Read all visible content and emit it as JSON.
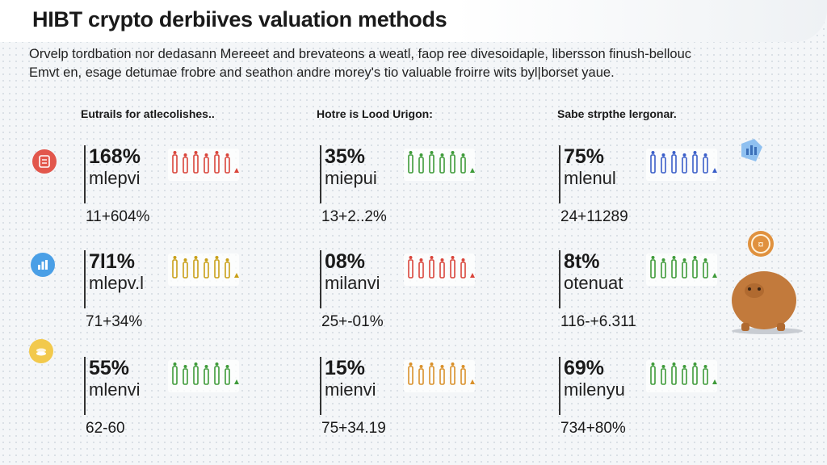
{
  "header": {
    "title": "HIBT crypto derbiives valuation methods",
    "subtitle_line1": "Orvelp tordbation nor dedasann Mereeet and brevateons a weatl, faop ree divesoidaple, libersson finush-bellouc",
    "subtitle_line2": "Emvt en, esage detumae frobre and seathon andre morey's tio valuable froirre wits byl|borset yaue."
  },
  "columns": [
    {
      "heading": "Eutrails for atlecolishes.."
    },
    {
      "heading": "Hotre is Lood Urigon:"
    },
    {
      "heading": "Sabe strpthe lergonar."
    }
  ],
  "cells": [
    [
      {
        "value": "168%",
        "label": "mlepvi",
        "change": "11+604%",
        "badge_color": "#e2574c",
        "icon_color": "#d9453b"
      },
      {
        "value": "7l1%",
        "label": "mlepv.l",
        "change": "71+34%",
        "badge_color": "#4a9fe6",
        "icon_color": "#c9a018"
      },
      {
        "value": "55%",
        "label": "mlenvi",
        "change": "62-60",
        "badge_color": "#f2c94c",
        "icon_color": "#3f9b3a"
      }
    ],
    [
      {
        "value": "35%",
        "label": "miepui",
        "change": "13+2..2%",
        "icon_color": "#3f9b3a"
      },
      {
        "value": "08%",
        "label": "milanvi",
        "change": "25+-01%",
        "icon_color": "#d9453b"
      },
      {
        "value": "15%",
        "label": "mienvi",
        "change": "75+34.19",
        "icon_color": "#d9902a"
      }
    ],
    [
      {
        "value": "75%",
        "label": "mlenul",
        "change": "24+11289",
        "icon_color": "#3b5fc9"
      },
      {
        "value": "8t%",
        "label": "otenuat",
        "change": "116-+6.311",
        "icon_color": "#3f9b3a"
      },
      {
        "value": "69%",
        "label": "milenyu",
        "change": "734+80%",
        "icon_color": "#3f9b3a"
      }
    ]
  ],
  "decor": {
    "tag_icon": "chart-tag-icon",
    "coin_icon": "coin-icon",
    "piggy_icon": "piggy-bank-icon"
  }
}
